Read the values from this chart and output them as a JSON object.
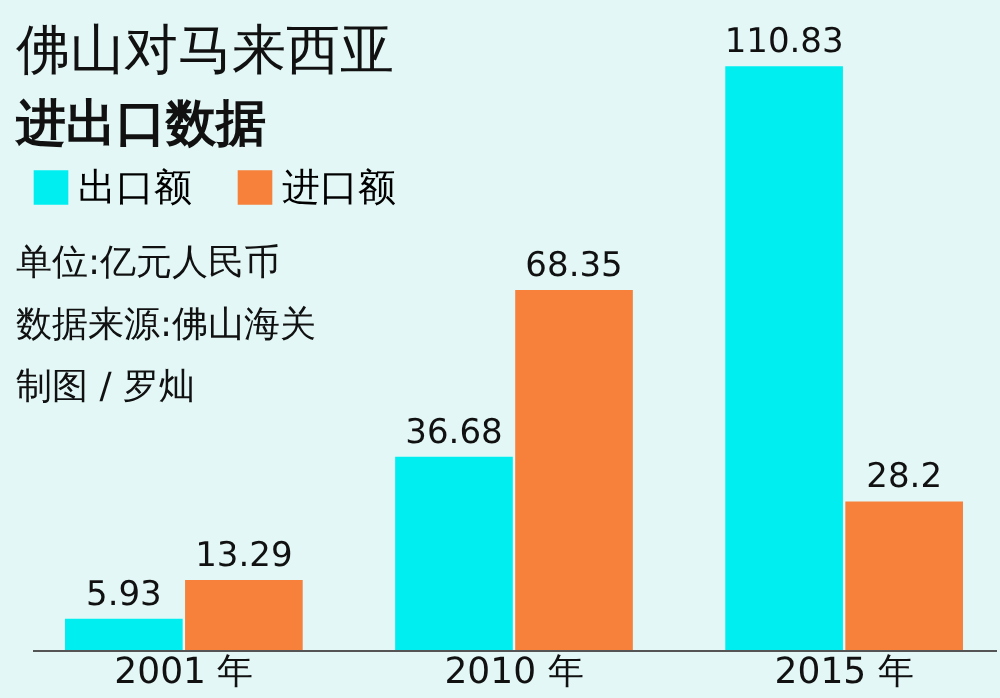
{
  "chart_data": {
    "type": "bar",
    "title": "佛山对马来西亚",
    "subtitle": "进出口数据",
    "categories": [
      "2001 年",
      "2010 年",
      "2015 年"
    ],
    "series": [
      {
        "name": "出口额",
        "color": "#00eef0",
        "values": [
          5.93,
          36.68,
          110.83
        ]
      },
      {
        "name": "进口额",
        "color": "#f7813a",
        "values": [
          13.29,
          68.35,
          28.2
        ]
      }
    ],
    "data_labels": true,
    "legend": "top left",
    "grid": false,
    "annotations": [
      "单位:亿元人民币",
      "数据来源:佛山海关",
      "制图 / 罗灿"
    ]
  }
}
